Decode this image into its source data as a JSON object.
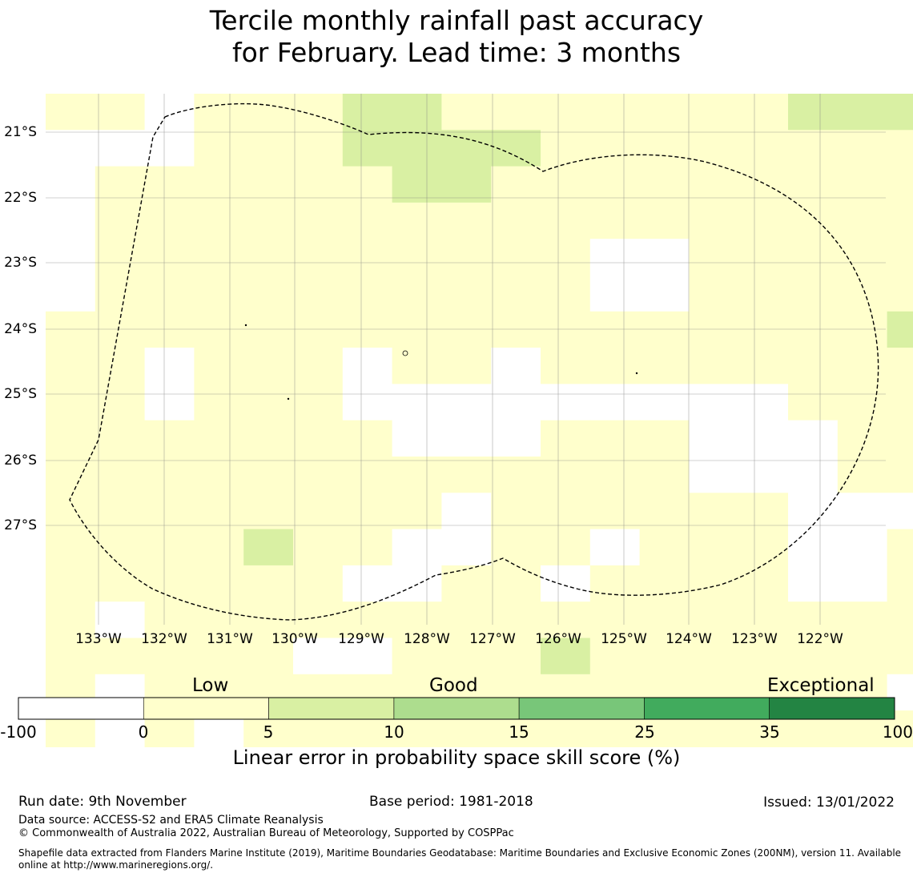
{
  "title": {
    "line1": "Tercile monthly rainfall past accuracy",
    "line2": "for February. Lead time: 3 months"
  },
  "map": {
    "lat_labels": [
      "21°S",
      "22°S",
      "23°S",
      "24°S",
      "25°S",
      "26°S",
      "27°S"
    ],
    "lon_labels": [
      "133°W",
      "132°W",
      "131°W",
      "130°W",
      "129°W",
      "128°W",
      "127°W",
      "126°W",
      "125°W",
      "124°W",
      "123°W",
      "122°W"
    ],
    "grid": {
      "colors": {
        "w": "#ffffff",
        "y": "#ffffcc",
        "g": "#d9f0a3"
      },
      "rows": [
        "yywyyyggyyyyyyygggg",
        "wwwyyyggggyyyyyyyyg",
        "wyyyyyyggyyyyyyyyyg",
        "wyyyyyyyyyyyyyyyyyy",
        "wyyyyyyyyyywwyyyyyy",
        "wyyyyyyyyyywwyyyyyy",
        "yyyyyyyyyyyyyyyyygy",
        "yywyyywyywyyyyyyyyy",
        "yywyyywwwwwwwwwyyyy",
        "yyyyyyywwwyyywwwyyy",
        "yyyyyyyyyyyyywwwyyy",
        "yyyyyyyywyyyyyywwwy",
        "yyyygyywwyywyyywwyy",
        "yyyyyywwyywyyyywwyy",
        "ywyyyyyyyyyyyyyyyyy",
        "yyyyywwyyygyyyyyyyy",
        "ywyyyyyyyyyyyyyyywy",
        "ywywyyyyyyyyyyyyyyy"
      ]
    }
  },
  "colorbar": {
    "categories": [
      "Low",
      "Good",
      "Exceptional"
    ],
    "ticks": [
      "-100",
      "0",
      "5",
      "10",
      "15",
      "25",
      "35",
      "100"
    ],
    "colors": [
      "#ffffff",
      "#ffffcc",
      "#d9f0a3",
      "#addd8e",
      "#78c679",
      "#41ab5d",
      "#238443"
    ],
    "label": "Linear error in probability space skill score (%)"
  },
  "footer": {
    "run_date": "Run date: 9th November",
    "base_period": "Base period: 1981-2018",
    "issued": "Issued: 13/01/2022",
    "data_source": "Data source: ACCESS-S2 and ERA5 Climate Reanalysis",
    "copyright": "© Commonwealth of Australia 2022, Australian Bureau of Meteorology, Supported by COSPPac",
    "shapefile": "Shapefile data extracted from Flanders Marine Institute (2019), Maritime Boundaries Geodatabase: Maritime Boundaries and Exclusive Economic Zones (200NM), version 11. Available online at http://www.marineregions.org/."
  }
}
